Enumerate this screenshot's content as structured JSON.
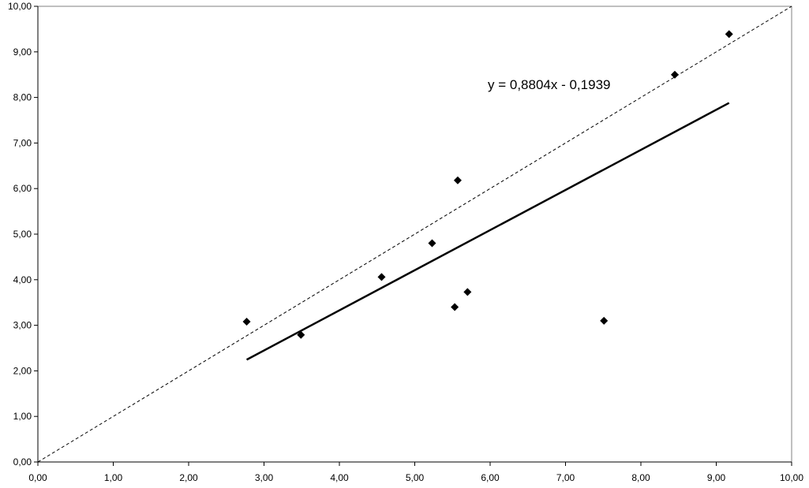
{
  "chart_data": {
    "type": "scatter",
    "title": "",
    "xlabel": "",
    "ylabel": "",
    "xlim": [
      0,
      10
    ],
    "ylim": [
      0,
      10
    ],
    "x_ticks": [
      "0,00",
      "1,00",
      "2,00",
      "3,00",
      "4,00",
      "5,00",
      "6,00",
      "7,00",
      "8,00",
      "9,00",
      "10,00"
    ],
    "y_ticks": [
      "0,00",
      "1,00",
      "2,00",
      "3,00",
      "4,00",
      "5,00",
      "6,00",
      "7,00",
      "8,00",
      "9,00",
      "10,00"
    ],
    "grid": false,
    "legend": "none",
    "series": [
      {
        "marker": "diamond",
        "color": "#000000",
        "points": [
          {
            "x": 2.77,
            "y": 3.08
          },
          {
            "x": 3.49,
            "y": 2.79
          },
          {
            "x": 4.56,
            "y": 4.06
          },
          {
            "x": 5.23,
            "y": 4.8
          },
          {
            "x": 5.53,
            "y": 3.4
          },
          {
            "x": 5.57,
            "y": 6.18
          },
          {
            "x": 5.7,
            "y": 3.73
          },
          {
            "x": 7.51,
            "y": 3.1
          },
          {
            "x": 8.45,
            "y": 8.5
          },
          {
            "x": 9.17,
            "y": 9.39
          }
        ]
      }
    ],
    "trendline": {
      "slope": 0.8804,
      "intercept": -0.1939,
      "x_range": [
        2.77,
        9.17
      ],
      "equation": "y = 0,8804x - 0,1939"
    },
    "reference_line": {
      "style": "dashed",
      "from": [
        0,
        0
      ],
      "to": [
        10,
        10
      ]
    }
  }
}
